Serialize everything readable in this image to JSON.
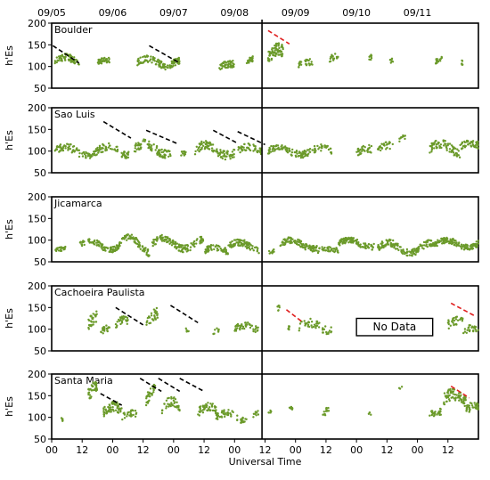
{
  "chart_data": {
    "type": "scatter",
    "date_labels": [
      "09/05",
      "09/06",
      "09/07",
      "09/08",
      "09/09",
      "09/10",
      "09/11"
    ],
    "xlabel": "Universal Time",
    "x_tick_labels": [
      "00",
      "12",
      "00",
      "12",
      "00",
      "12",
      "00",
      "12",
      "00",
      "12",
      "00",
      "12",
      "00",
      "12"
    ],
    "ylabel": "h'Es",
    "ylim": [
      50,
      200
    ],
    "y_ticks": [
      50,
      100,
      150,
      200
    ],
    "xlim_days": [
      0,
      7
    ],
    "event_marker_day": 3.45,
    "point_color": "#6b9a2a",
    "no_data_label": "No Data",
    "stations": [
      {
        "name": "Boulder",
        "segments": [
          {
            "x0": 0.05,
            "x1": 0.45,
            "center": 110,
            "amp": 12,
            "noise": 8,
            "density": 70
          },
          {
            "x0": 0.75,
            "x1": 0.95,
            "center": 110,
            "amp": 5,
            "noise": 6,
            "density": 40
          },
          {
            "x0": 1.4,
            "x1": 1.95,
            "center": 108,
            "amp": 10,
            "noise": 8,
            "density": 80
          },
          {
            "x0": 1.95,
            "x1": 2.1,
            "center": 105,
            "amp": 8,
            "noise": 8,
            "density": 40
          },
          {
            "x0": 2.75,
            "x1": 3.0,
            "center": 98,
            "amp": 8,
            "noise": 8,
            "density": 50
          },
          {
            "x0": 3.2,
            "x1": 3.3,
            "center": 110,
            "amp": 10,
            "noise": 6,
            "density": 25
          },
          {
            "x0": 3.55,
            "x1": 3.8,
            "center": 120,
            "amp": 20,
            "noise": 15,
            "density": 70
          },
          {
            "x0": 4.05,
            "x1": 4.3,
            "center": 105,
            "amp": 6,
            "noise": 8,
            "density": 25
          },
          {
            "x0": 4.55,
            "x1": 4.7,
            "center": 118,
            "amp": 6,
            "noise": 8,
            "density": 20
          },
          {
            "x0": 5.2,
            "x1": 5.25,
            "center": 120,
            "amp": 4,
            "noise": 6,
            "density": 8
          },
          {
            "x0": 5.55,
            "x1": 5.6,
            "center": 112,
            "amp": 4,
            "noise": 6,
            "density": 8
          },
          {
            "x0": 6.3,
            "x1": 6.4,
            "center": 112,
            "amp": 6,
            "noise": 6,
            "density": 15
          },
          {
            "x0": 6.7,
            "x1": 6.75,
            "center": 108,
            "amp": 4,
            "noise": 6,
            "density": 6
          }
        ],
        "trend_lines": [
          {
            "x": [
              0.02,
              0.45
            ],
            "y": [
              148,
              108
            ],
            "color": "#000000"
          },
          {
            "x": [
              1.6,
              2.1
            ],
            "y": [
              148,
              108
            ],
            "color": "#000000"
          },
          {
            "x": [
              3.55,
              3.9
            ],
            "y": [
              183,
              152
            ],
            "color": "#e02020"
          }
        ]
      },
      {
        "name": "Sao Luis",
        "segments": [
          {
            "x0": 0.05,
            "x1": 1.3,
            "center": 100,
            "amp": 10,
            "noise": 9,
            "density": 150
          },
          {
            "x0": 1.35,
            "x1": 1.95,
            "center": 105,
            "amp": 12,
            "noise": 10,
            "density": 90
          },
          {
            "x0": 2.1,
            "x1": 2.2,
            "center": 92,
            "amp": 6,
            "noise": 6,
            "density": 12
          },
          {
            "x0": 2.35,
            "x1": 3.0,
            "center": 102,
            "amp": 12,
            "noise": 10,
            "density": 100
          },
          {
            "x0": 3.05,
            "x1": 3.45,
            "center": 102,
            "amp": 8,
            "noise": 8,
            "density": 50
          },
          {
            "x0": 3.55,
            "x1": 4.6,
            "center": 100,
            "amp": 8,
            "noise": 8,
            "density": 130
          },
          {
            "x0": 5.0,
            "x1": 5.25,
            "center": 95,
            "amp": 12,
            "noise": 10,
            "density": 35
          },
          {
            "x0": 5.35,
            "x1": 5.6,
            "center": 105,
            "amp": 8,
            "noise": 8,
            "density": 30
          },
          {
            "x0": 5.7,
            "x1": 5.8,
            "center": 128,
            "amp": 5,
            "noise": 6,
            "density": 10
          },
          {
            "x0": 6.2,
            "x1": 6.7,
            "center": 105,
            "amp": 12,
            "noise": 10,
            "density": 70
          },
          {
            "x0": 6.7,
            "x1": 7.0,
            "center": 110,
            "amp": 8,
            "noise": 8,
            "density": 45
          }
        ],
        "trend_lines": [
          {
            "x": [
              0.85,
              1.3
            ],
            "y": [
              168,
              130
            ],
            "color": "#000000"
          },
          {
            "x": [
              1.55,
              2.05
            ],
            "y": [
              148,
              118
            ],
            "color": "#000000"
          },
          {
            "x": [
              2.65,
              3.05
            ],
            "y": [
              148,
              118
            ],
            "color": "#000000"
          },
          {
            "x": [
              3.05,
              3.5
            ],
            "y": [
              145,
              115
            ],
            "color": "#000000"
          }
        ]
      },
      {
        "name": "Jicamarca",
        "segments": [
          {
            "x0": 0.05,
            "x1": 0.25,
            "center": 75,
            "amp": 5,
            "noise": 5,
            "density": 25
          },
          {
            "x0": 0.45,
            "x1": 1.1,
            "center": 88,
            "amp": 10,
            "noise": 7,
            "density": 100
          },
          {
            "x0": 1.1,
            "x1": 1.6,
            "center": 88,
            "amp": 18,
            "noise": 8,
            "density": 90
          },
          {
            "x0": 1.65,
            "x1": 2.5,
            "center": 92,
            "amp": 12,
            "noise": 8,
            "density": 130
          },
          {
            "x0": 2.5,
            "x1": 2.9,
            "center": 75,
            "amp": 8,
            "noise": 7,
            "density": 60
          },
          {
            "x0": 2.9,
            "x1": 3.4,
            "center": 85,
            "amp": 10,
            "noise": 8,
            "density": 80
          },
          {
            "x0": 3.55,
            "x1": 3.65,
            "center": 72,
            "amp": 4,
            "noise": 5,
            "density": 10
          },
          {
            "x0": 3.75,
            "x1": 4.35,
            "center": 90,
            "amp": 10,
            "noise": 7,
            "density": 100
          },
          {
            "x0": 4.35,
            "x1": 4.7,
            "center": 75,
            "amp": 5,
            "noise": 6,
            "density": 40
          },
          {
            "x0": 4.7,
            "x1": 5.3,
            "center": 92,
            "amp": 8,
            "noise": 7,
            "density": 100
          },
          {
            "x0": 5.35,
            "x1": 6.3,
            "center": 82,
            "amp": 12,
            "noise": 8,
            "density": 160
          },
          {
            "x0": 6.3,
            "x1": 7.0,
            "center": 92,
            "amp": 8,
            "noise": 7,
            "density": 130
          }
        ],
        "trend_lines": []
      },
      {
        "name": "Cachoeira Paulista",
        "segments": [
          {
            "x0": 0.6,
            "x1": 0.75,
            "center": 110,
            "amp": 20,
            "noise": 14,
            "density": 30
          },
          {
            "x0": 0.8,
            "x1": 0.95,
            "center": 95,
            "amp": 8,
            "noise": 8,
            "density": 20
          },
          {
            "x0": 1.05,
            "x1": 1.25,
            "center": 112,
            "amp": 10,
            "noise": 10,
            "density": 30
          },
          {
            "x0": 1.55,
            "x1": 1.75,
            "center": 115,
            "amp": 20,
            "noise": 14,
            "density": 30
          },
          {
            "x0": 2.2,
            "x1": 2.25,
            "center": 98,
            "amp": 4,
            "noise": 5,
            "density": 5
          },
          {
            "x0": 2.65,
            "x1": 2.75,
            "center": 95,
            "amp": 4,
            "noise": 6,
            "density": 8
          },
          {
            "x0": 3.0,
            "x1": 3.4,
            "center": 100,
            "amp": 8,
            "noise": 8,
            "density": 50
          },
          {
            "x0": 3.7,
            "x1": 3.75,
            "center": 148,
            "amp": 4,
            "noise": 6,
            "density": 6
          },
          {
            "x0": 3.85,
            "x1": 3.9,
            "center": 100,
            "amp": 4,
            "noise": 6,
            "density": 5
          },
          {
            "x0": 4.05,
            "x1": 4.6,
            "center": 105,
            "amp": 10,
            "noise": 10,
            "density": 50
          },
          {
            "x0": 6.5,
            "x1": 6.75,
            "center": 110,
            "amp": 10,
            "noise": 10,
            "density": 30
          },
          {
            "x0": 6.75,
            "x1": 7.0,
            "center": 95,
            "amp": 8,
            "noise": 8,
            "density": 25
          }
        ],
        "trend_lines": [
          {
            "x": [
              1.05,
              1.5
            ],
            "y": [
              150,
              110
            ],
            "color": "#000000"
          },
          {
            "x": [
              1.95,
              2.4
            ],
            "y": [
              155,
              115
            ],
            "color": "#000000"
          },
          {
            "x": [
              3.85,
              4.1
            ],
            "y": [
              145,
              118
            ],
            "color": "#e02020"
          },
          {
            "x": [
              6.55,
              6.95
            ],
            "y": [
              160,
              130
            ],
            "color": "#e02020"
          }
        ],
        "no_data_box": {
          "x0": 5.0,
          "x1": 6.25,
          "y_low": 85,
          "y_high": 125
        }
      },
      {
        "name": "Santa Maria",
        "segments": [
          {
            "x0": 0.15,
            "x1": 0.2,
            "center": 95,
            "amp": 4,
            "noise": 6,
            "density": 5
          },
          {
            "x0": 0.6,
            "x1": 0.75,
            "center": 150,
            "amp": 25,
            "noise": 14,
            "density": 35
          },
          {
            "x0": 0.85,
            "x1": 1.15,
            "center": 110,
            "amp": 15,
            "noise": 12,
            "density": 60
          },
          {
            "x0": 1.15,
            "x1": 1.4,
            "center": 100,
            "amp": 10,
            "noise": 8,
            "density": 30
          },
          {
            "x0": 1.55,
            "x1": 1.7,
            "center": 140,
            "amp": 25,
            "noise": 14,
            "density": 30
          },
          {
            "x0": 1.8,
            "x1": 2.1,
            "center": 120,
            "amp": 15,
            "noise": 12,
            "density": 40
          },
          {
            "x0": 2.4,
            "x1": 2.7,
            "center": 112,
            "amp": 12,
            "noise": 10,
            "density": 45
          },
          {
            "x0": 2.7,
            "x1": 3.05,
            "center": 100,
            "amp": 10,
            "noise": 8,
            "density": 40
          },
          {
            "x0": 3.1,
            "x1": 3.2,
            "center": 92,
            "amp": 6,
            "noise": 6,
            "density": 15
          },
          {
            "x0": 3.3,
            "x1": 3.4,
            "center": 105,
            "amp": 6,
            "noise": 6,
            "density": 10
          },
          {
            "x0": 3.55,
            "x1": 3.6,
            "center": 112,
            "amp": 4,
            "noise": 5,
            "density": 5
          },
          {
            "x0": 3.9,
            "x1": 3.95,
            "center": 120,
            "amp": 4,
            "noise": 6,
            "density": 10
          },
          {
            "x0": 4.45,
            "x1": 4.55,
            "center": 110,
            "amp": 8,
            "noise": 8,
            "density": 12
          },
          {
            "x0": 5.2,
            "x1": 5.25,
            "center": 110,
            "amp": 4,
            "noise": 6,
            "density": 4
          },
          {
            "x0": 5.7,
            "x1": 5.75,
            "center": 168,
            "amp": 4,
            "noise": 4,
            "density": 3
          },
          {
            "x0": 6.2,
            "x1": 6.4,
            "center": 105,
            "amp": 8,
            "noise": 8,
            "density": 25
          },
          {
            "x0": 6.4,
            "x1": 6.8,
            "center": 138,
            "amp": 15,
            "noise": 14,
            "density": 70
          },
          {
            "x0": 6.8,
            "x1": 7.0,
            "center": 118,
            "amp": 10,
            "noise": 10,
            "density": 35
          }
        ],
        "trend_lines": [
          {
            "x": [
              0.8,
              1.15
            ],
            "y": [
              155,
              128
            ],
            "color": "#000000"
          },
          {
            "x": [
              1.45,
              1.8
            ],
            "y": [
              190,
              160
            ],
            "color": "#000000"
          },
          {
            "x": [
              1.75,
              2.1
            ],
            "y": [
              190,
              160
            ],
            "color": "#000000"
          },
          {
            "x": [
              2.1,
              2.5
            ],
            "y": [
              190,
              160
            ],
            "color": "#000000"
          },
          {
            "x": [
              6.55,
              6.85
            ],
            "y": [
              172,
              145
            ],
            "color": "#e02020"
          }
        ]
      }
    ]
  }
}
